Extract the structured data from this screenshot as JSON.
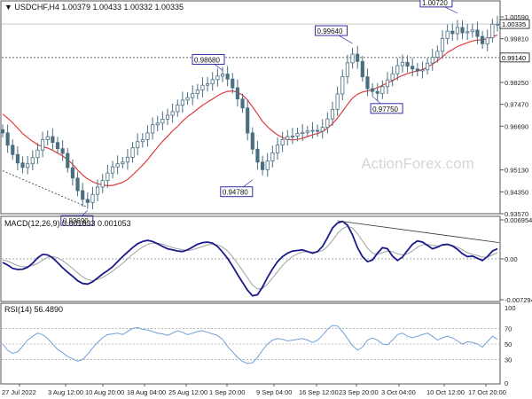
{
  "main": {
    "title": "▼ USDCHF,H4  1.00379 1.00433 1.00332 1.00335",
    "watermark": "ActionForex.com",
    "current_price": "1.00335",
    "y_ticks": [
      "1.00590",
      "0.99810",
      "0.99140",
      "0.98250",
      "0.97470",
      "0.96690",
      "0.95130",
      "0.94350",
      "0.93570"
    ],
    "annotations": [
      "0.93690",
      "0.98680",
      "0.94780",
      "0.99640",
      "0.97750",
      "1.00720"
    ]
  },
  "macd": {
    "title": "MACD(12,26,9) 0.001833 0.001053",
    "y_ticks": [
      "0.006954",
      "0.00",
      "-0.007294"
    ]
  },
  "rsi": {
    "title": "RSI(14) 56.4890",
    "y_ticks": [
      "100",
      "70",
      "50",
      "30",
      "0"
    ]
  },
  "x_ticks": [
    "27 Jul 2022",
    "3 Aug 12:00",
    "10 Aug 20:00",
    "18 Aug 04:00",
    "25 Aug 12:00",
    "1 Sep 20:00",
    "9 Sep 04:00",
    "16 Sep 12:00",
    "23 Sep 20:00",
    "3 Oct 04:00",
    "10 Oct 12:00",
    "17 Oct 20:00"
  ],
  "colors": {
    "candle": "#4a6f82",
    "sma": "#e03c3c",
    "macd": "#1a1a8c",
    "signal": "#a0a0a0",
    "rsi": "#6fa0d8",
    "watermark": "#d6d6d6",
    "box": "#1a1aa0"
  },
  "chart_data": [
    {
      "type": "candlestick",
      "symbol": "USDCHF",
      "timeframe": "H4",
      "ohlc_last": {
        "open": 1.00379,
        "high": 1.00433,
        "low": 1.00332,
        "close": 1.00335
      },
      "ylim": [
        0.9357,
        1.0059
      ],
      "close_series": [
        0.9645,
        0.9601,
        0.9568,
        0.9538,
        0.9522,
        0.9535,
        0.9557,
        0.9584,
        0.9621,
        0.9632,
        0.9611,
        0.9589,
        0.9572,
        0.9521,
        0.9484,
        0.9439,
        0.9408,
        0.9397,
        0.9426,
        0.9452,
        0.9475,
        0.9502,
        0.9524,
        0.9535,
        0.9541,
        0.9558,
        0.9592,
        0.9614,
        0.9621,
        0.9645,
        0.9674,
        0.968,
        0.9694,
        0.9708,
        0.9721,
        0.9744,
        0.9762,
        0.9771,
        0.9785,
        0.9798,
        0.9815,
        0.982,
        0.9835,
        0.9848,
        0.9855,
        0.9837,
        0.9806,
        0.9766,
        0.9734,
        0.9645,
        0.9587,
        0.9541,
        0.9514,
        0.9545,
        0.9574,
        0.9602,
        0.9621,
        0.9632,
        0.9634,
        0.9643,
        0.9647,
        0.9652,
        0.9654,
        0.9651,
        0.9665,
        0.9695,
        0.9729,
        0.9784,
        0.9846,
        0.9895,
        0.9926,
        0.99,
        0.9845,
        0.9803,
        0.9793,
        0.9786,
        0.981,
        0.9834,
        0.9856,
        0.9885,
        0.9897,
        0.9883,
        0.9873,
        0.9866,
        0.987,
        0.9894,
        0.9915,
        0.9936,
        0.9982,
        1.0008,
        0.9999,
        1.0021,
        1.0002,
        1.0006,
        1.0012,
        0.9989,
        0.9963,
        0.9984,
        1.0033,
        1.0033
      ],
      "sma_series": [
        0.9712,
        0.9698,
        0.9681,
        0.9662,
        0.9643,
        0.9628,
        0.9615,
        0.9603,
        0.9596,
        0.9591,
        0.9583,
        0.9573,
        0.9563,
        0.955,
        0.9533,
        0.9513,
        0.9495,
        0.9481,
        0.9471,
        0.9464,
        0.9459,
        0.9457,
        0.9458,
        0.9463,
        0.9469,
        0.9479,
        0.9495,
        0.9512,
        0.953,
        0.955,
        0.9572,
        0.9594,
        0.9615,
        0.9633,
        0.9652,
        0.9668,
        0.9687,
        0.9703,
        0.9716,
        0.973,
        0.9744,
        0.9755,
        0.9766,
        0.9778,
        0.9787,
        0.9793,
        0.9795,
        0.979,
        0.978,
        0.9762,
        0.9738,
        0.9712,
        0.9686,
        0.9667,
        0.9651,
        0.9638,
        0.9629,
        0.9622,
        0.962,
        0.9622,
        0.9626,
        0.9632,
        0.9638,
        0.9643,
        0.965,
        0.9662,
        0.9678,
        0.9698,
        0.9722,
        0.9747,
        0.9769,
        0.9783,
        0.9791,
        0.9795,
        0.98,
        0.9806,
        0.9815,
        0.9823,
        0.9831,
        0.9841,
        0.985,
        0.9857,
        0.9862,
        0.9866,
        0.9871,
        0.988,
        0.989,
        0.9902,
        0.9917,
        0.9932,
        0.9942,
        0.9953,
        0.996,
        0.9967,
        0.9973,
        0.9976,
        0.9977,
        0.9981,
        0.9988,
        0.9994
      ]
    },
    {
      "type": "line",
      "title": "MACD(12,26,9) 0.001833 0.001053",
      "ylim": [
        -0.007294,
        0.006954
      ],
      "series": [
        {
          "values": [
            -0.00065,
            -0.0011,
            -0.0017,
            -0.0019,
            -0.00185,
            -0.0015,
            -0.0008,
            0.0002,
            0.0008,
            0.0007,
            0.0002,
            -0.0007,
            -0.0016,
            -0.0024,
            -0.0031,
            -0.0039,
            -0.0044,
            -0.0045,
            -0.0041,
            -0.0034,
            -0.0027,
            -0.0021,
            -0.0014,
            -0.0005,
            0.0004,
            0.0012,
            0.002,
            0.0027,
            0.0031,
            0.0033,
            0.0031,
            0.0027,
            0.0022,
            0.0018,
            0.0016,
            0.0014,
            0.0013,
            0.0016,
            0.0021,
            0.0026,
            0.0029,
            0.003,
            0.0028,
            0.0022,
            0.0012,
            0.0001,
            -0.0013,
            -0.0028,
            -0.0042,
            -0.0056,
            -0.0066,
            -0.0064,
            -0.005,
            -0.0033,
            -0.0018,
            -0.0005,
            0.0004,
            0.001,
            0.0014,
            0.0015,
            0.0016,
            0.0013,
            0.001,
            0.0013,
            0.0022,
            0.0038,
            0.0055,
            0.0064,
            0.0067,
            0.006,
            0.0043,
            0.002,
            0.0004,
            -0.0005,
            -0.0002,
            0.001,
            0.002,
            0.0018,
            0.0005,
            -0.0003,
            0.0003,
            0.0015,
            0.0026,
            0.0032,
            0.003,
            0.0024,
            0.0018,
            0.0021,
            0.0025,
            0.0026,
            0.0023,
            0.0017,
            0.0009,
            0.0004,
            0.0005,
            0.0001,
            -0.0003,
            0.0004,
            0.0014,
            0.0018
          ]
        },
        {
          "values": [
            -0.0002,
            -0.0004,
            -0.0008,
            -0.0012,
            -0.0014,
            -0.0014,
            -0.0012,
            -0.0008,
            -0.0002,
            0.0003,
            0.0004,
            0.0002,
            -0.0003,
            -0.001,
            -0.0017,
            -0.0025,
            -0.0032,
            -0.0037,
            -0.0039,
            -0.0037,
            -0.0033,
            -0.0028,
            -0.0022,
            -0.0015,
            -0.0008,
            0.0,
            0.0008,
            0.0015,
            0.0021,
            0.0026,
            0.0028,
            0.0028,
            0.0026,
            0.0023,
            0.002,
            0.0018,
            0.0016,
            0.0015,
            0.0016,
            0.0019,
            0.0022,
            0.0025,
            0.0026,
            0.0025,
            0.0021,
            0.0014,
            0.0004,
            -0.0008,
            -0.0021,
            -0.0034,
            -0.0047,
            -0.0054,
            -0.0053,
            -0.0045,
            -0.0034,
            -0.0023,
            -0.0012,
            -0.0003,
            0.0004,
            0.0009,
            0.0012,
            0.0013,
            0.0012,
            0.0012,
            0.0015,
            0.0022,
            0.0033,
            0.0045,
            0.0054,
            0.0058,
            0.0055,
            0.0045,
            0.0032,
            0.0019,
            0.001,
            0.0008,
            0.0011,
            0.0014,
            0.0013,
            0.0009,
            0.0007,
            0.0009,
            0.0014,
            0.0021,
            0.0025,
            0.0026,
            0.0024,
            0.0023,
            0.0024,
            0.0025,
            0.0024,
            0.0021,
            0.0016,
            0.0011,
            0.0008,
            0.0006,
            0.0003,
            0.0003,
            0.0007,
            0.0011
          ]
        }
      ]
    },
    {
      "type": "line",
      "title": "RSI(14) 56.4890",
      "ylim": [
        0,
        100
      ],
      "series": [
        {
          "values": [
            50,
            42,
            38,
            40,
            47,
            55,
            60,
            64,
            62,
            57,
            50,
            43,
            39,
            34,
            31,
            28,
            30,
            37,
            45,
            52,
            58,
            62,
            63,
            64,
            62,
            66,
            70,
            71,
            69,
            68,
            66,
            64,
            63,
            61,
            64,
            67,
            65,
            62,
            64,
            66,
            67,
            65,
            63,
            61,
            56,
            47,
            40,
            33,
            28,
            25,
            26,
            33,
            42,
            50,
            55,
            57,
            56,
            54,
            55,
            56,
            57,
            55,
            52,
            55,
            61,
            69,
            74,
            73,
            66,
            57,
            48,
            42,
            46,
            55,
            58,
            55,
            50,
            49,
            55,
            62,
            64,
            60,
            58,
            60,
            62,
            64,
            60,
            55,
            58,
            60,
            58,
            54,
            50,
            53,
            52,
            50,
            46,
            53,
            60,
            56
          ]
        }
      ],
      "levels": [
        70,
        50,
        30
      ]
    }
  ]
}
